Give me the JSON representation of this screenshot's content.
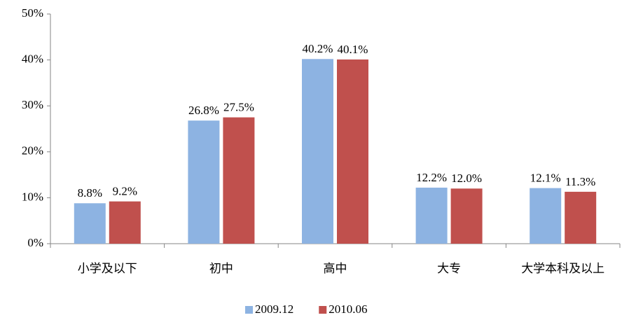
{
  "chart_data": {
    "type": "bar",
    "categories": [
      "小学及以下",
      "初中",
      "高中",
      "大专",
      "大学本科及以上"
    ],
    "series": [
      {
        "name": "2009.12",
        "color": "#8db3e2",
        "values": [
          8.8,
          26.8,
          40.2,
          12.2,
          12.1
        ],
        "value_labels": [
          "8.8%",
          "26.8%",
          "40.2%",
          "12.2%",
          "12.1%"
        ]
      },
      {
        "name": "2010.06",
        "color": "#c0504d",
        "values": [
          9.2,
          27.5,
          40.1,
          12.0,
          11.3
        ],
        "value_labels": [
          "9.2%",
          "27.5%",
          "40.1%",
          "12.0%",
          "11.3%"
        ]
      }
    ],
    "ylim": [
      0,
      50
    ],
    "yticks": [
      {
        "value": 0,
        "label": "0%"
      },
      {
        "value": 10,
        "label": "10%"
      },
      {
        "value": 20,
        "label": "20%"
      },
      {
        "value": 30,
        "label": "30%"
      },
      {
        "value": 40,
        "label": "40%"
      },
      {
        "value": 50,
        "label": "50%"
      }
    ],
    "grid": false,
    "legend": "bottom"
  }
}
